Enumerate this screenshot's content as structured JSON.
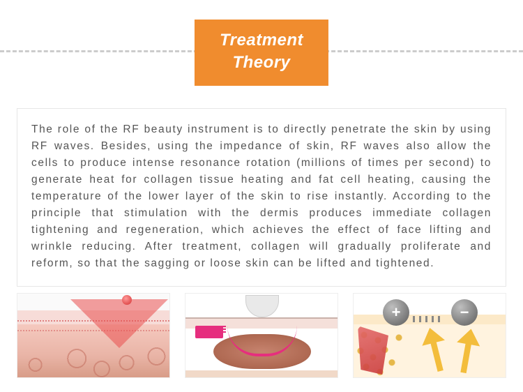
{
  "header": {
    "line1": "Treatment",
    "line2": "Theory",
    "bg_color": "#f08c2e",
    "text_color": "#ffffff"
  },
  "divider": {
    "color": "#cccccc",
    "style": "dashed"
  },
  "card": {
    "border_color": "#e6e6e6",
    "text_color": "#555555",
    "body": "The role of the RF beauty instrument is to directly penetrate the skin by using RF waves. Besides, using the impedance of skin, RF waves also allow the cells to produce intense resonance rotation (millions of times per second) to generate heat for collagen tissue heating and fat cell heating, causing the temperature of the lower layer of the skin to rise instantly. According to the principle that stimulation with the dermis produces immediate collagen tightening and regeneration, which achieves the effect of face lifting and wrinkle reducing. After treatment, collagen will gradually proliferate and reform, so that the sagging or loose skin can be lifted and tightened."
  },
  "thumbs": {
    "items": [
      {
        "name": "rf-wave-penetration-diagram"
      },
      {
        "name": "probe-dermis-heating-diagram"
      },
      {
        "name": "electrode-fat-cell-diagram"
      }
    ],
    "electrodes": {
      "positive": "+",
      "negative": "−"
    }
  }
}
